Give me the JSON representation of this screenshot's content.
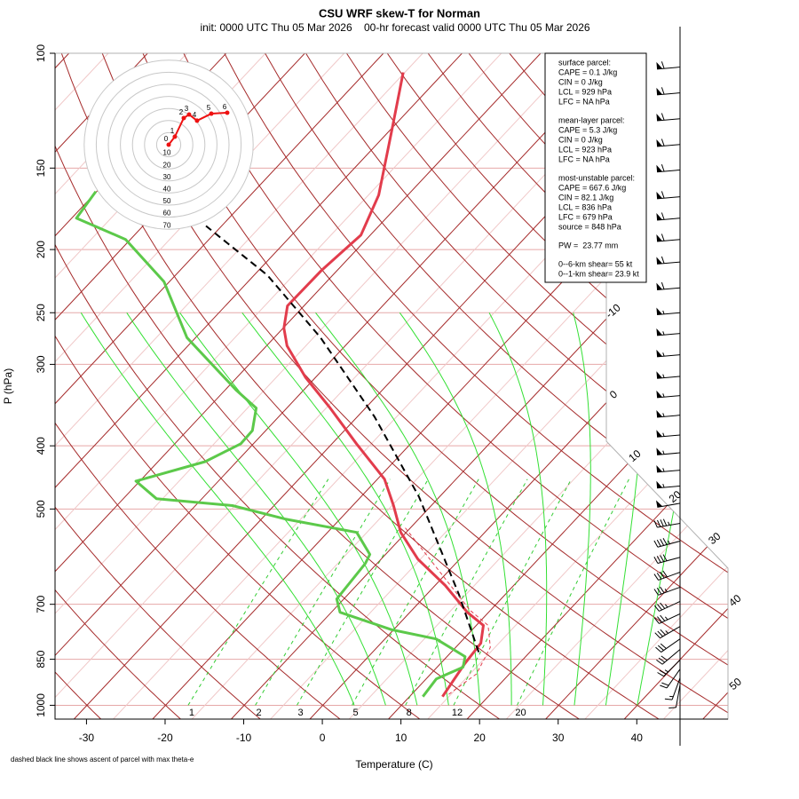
{
  "chart_data": {
    "type": "skewt",
    "title": "CSU WRF skew-T for Norman",
    "subtitle": "init: 0000 UTC Thu 05 Mar 2026    00-hr forecast valid 0000 UTC Thu 05 Mar 2026",
    "xlabel": "Temperature (C)",
    "ylabel": "P (hPa)",
    "footnote": "dashed black line shows ascent of parcel with max theta-e",
    "xlim": [
      -34,
      51.6
    ],
    "xticks": [
      -30,
      -20,
      -10,
      0,
      10,
      20,
      30,
      40
    ],
    "ylim": [
      1050,
      100
    ],
    "yticks": [
      100,
      150,
      200,
      250,
      300,
      400,
      500,
      700,
      850,
      1000
    ],
    "y_log": true,
    "grid": true,
    "isotherm_labels": [
      -10,
      0,
      10,
      20,
      30,
      40,
      50
    ],
    "mixing_ratio_labels": [
      1,
      2,
      3,
      5,
      8,
      12,
      20
    ],
    "series": [
      {
        "color": "#e23c4c",
        "width": 3,
        "dash": false,
        "pressure": [
          970,
          863,
          803,
          754,
          720,
          655,
          597,
          543,
          494,
          450,
          397,
          350,
          314,
          281,
          264,
          244,
          215,
          190,
          165,
          133,
          107
        ],
        "values": [
          14.2,
          13.1,
          12.7,
          10.9,
          7.3,
          1.3,
          -5.3,
          -10.7,
          -14.8,
          -19.1,
          -26.9,
          -34.5,
          -41.3,
          -47.4,
          -49.9,
          -52.1,
          -52.0,
          -51.2,
          -53.7,
          -59.4,
          -65.2
        ]
      },
      {
        "color": "#5cc94a",
        "width": 3,
        "dash": false,
        "pressure": [
          970,
          911,
          874,
          842,
          791,
          766,
          720,
          687,
          606,
          587,
          543,
          518,
          494,
          482,
          453,
          423,
          397,
          379,
          350,
          329,
          273,
          224,
          193,
          179,
          163
        ],
        "values": [
          11.7,
          11.3,
          13.3,
          12.3,
          6.5,
          -0.2,
          -8.9,
          -10.9,
          -11.5,
          -12.0,
          -16.3,
          -27.0,
          -35.3,
          -45.8,
          -50.5,
          -44.0,
          -41.6,
          -41.7,
          -43.9,
          -48.5,
          -61.1,
          -70.7,
          -80.6,
          -89.4,
          -90.1
        ]
      },
      {
        "color": "#000000",
        "width": 2,
        "dash": true,
        "pressure": [
          829,
          676,
          479,
          361,
          273,
          219,
          184
        ],
        "values": [
          13.5,
          4.1,
          -12.6,
          -27.8,
          -44.1,
          -58.3,
          -72.0
        ]
      },
      {
        "color": "#e23c4c",
        "width": 1,
        "dash": true,
        "pressure": [
          962,
          895,
          815,
          754,
          715,
          534
        ],
        "values": [
          14.7,
          15.8,
          14.4,
          11.5,
          7.4,
          -10.7
        ]
      }
    ],
    "info_box": [
      [
        "surface parcel:",
        "CAPE = 0.1 J/kg",
        "CIN = 0 J/kg",
        "LCL = 929 hPa",
        "LFC = NA hPa"
      ],
      [
        "mean-layer parcel:",
        "CAPE = 5.3 J/kg",
        "CIN = 0 J/kg",
        "LCL = 923 hPa",
        "LFC = NA hPa"
      ],
      [
        "most-unstable parcel:",
        "CAPE = 667.6 J/kg",
        "CIN = 82.1 J/kg",
        "LCL = 836 hPa",
        "LFC = 679 hPa",
        "source = 848 hPa"
      ],
      [
        "PW =  23.77 mm"
      ],
      [
        "0--6-km shear= 55 kt",
        "0--1-km shear= 23.9 kt"
      ]
    ],
    "wind_barbs": {
      "pressure": [
        105,
        115,
        126,
        138,
        151,
        166,
        179,
        193,
        209,
        229,
        250,
        269,
        290,
        313,
        335,
        359,
        385,
        410,
        436,
        461,
        490,
        526,
        560,
        593,
        625,
        659,
        693,
        724,
        757,
        791,
        821,
        852,
        880,
        908,
        930
      ],
      "speed": [
        60,
        60,
        60,
        60,
        60,
        60,
        60,
        60,
        60,
        60,
        55,
        55,
        55,
        55,
        55,
        55,
        55,
        55,
        55,
        55,
        50,
        45,
        45,
        40,
        40,
        35,
        35,
        35,
        35,
        30,
        30,
        25,
        20,
        15,
        10
      ],
      "direction": [
        265,
        265,
        265,
        265,
        265,
        265,
        265,
        265,
        265,
        265,
        265,
        265,
        265,
        265,
        265,
        265,
        265,
        265,
        265,
        265,
        260,
        260,
        255,
        255,
        250,
        250,
        245,
        245,
        240,
        235,
        230,
        225,
        215,
        200,
        190
      ]
    },
    "hodograph": {
      "rings": [
        10,
        20,
        30,
        40,
        50,
        60,
        70
      ],
      "levels": [
        0,
        1,
        2,
        3,
        4,
        5,
        6
      ],
      "u": [
        0,
        5.1,
        12.5,
        16.9,
        23.5,
        35.3,
        48.5
      ],
      "v": [
        0,
        6.6,
        22.1,
        25.0,
        19.9,
        25.7,
        26.5
      ],
      "color": "#ee1111"
    }
  }
}
